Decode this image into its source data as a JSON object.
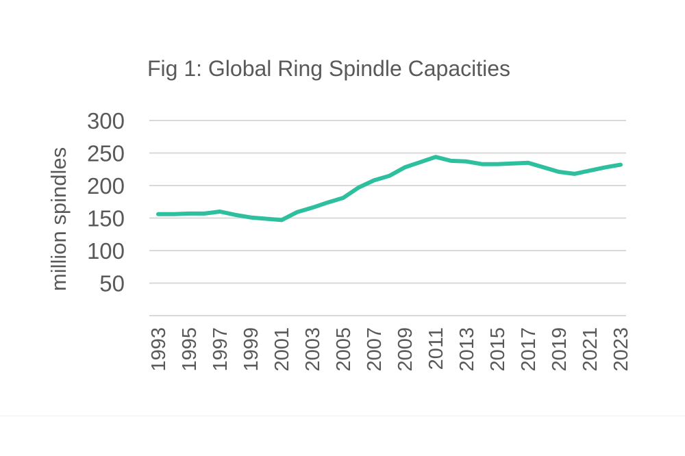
{
  "chart_data": {
    "type": "line",
    "title": "Fig 1: Global Ring Spindle Capacities",
    "xlabel": "",
    "ylabel": "million spindles",
    "ylim": [
      0,
      300
    ],
    "yticks": [
      50,
      100,
      150,
      200,
      250,
      300
    ],
    "ytick_labels": [
      "50",
      "100",
      "150",
      "200",
      "250",
      "300"
    ],
    "grid": true,
    "legend": "none",
    "x": [
      1993,
      1994,
      1995,
      1996,
      1997,
      1998,
      1999,
      2000,
      2001,
      2002,
      2003,
      2004,
      2005,
      2006,
      2007,
      2008,
      2009,
      2010,
      2011,
      2012,
      2013,
      2014,
      2015,
      2016,
      2017,
      2018,
      2019,
      2020,
      2021,
      2022,
      2023
    ],
    "xtick_labels": [
      "1993",
      "1995",
      "1997",
      "1999",
      "2001",
      "2003",
      "2005",
      "2007",
      "2009",
      "2011",
      "2013",
      "2015",
      "2017",
      "2019",
      "2021",
      "2023"
    ],
    "series": [
      {
        "name": "Global ring spindle capacity",
        "color": "#2ebf9e",
        "values": [
          156,
          156,
          157,
          157,
          160,
          155,
          151,
          149,
          147,
          159,
          166,
          174,
          181,
          197,
          208,
          215,
          228,
          236,
          244,
          238,
          237,
          233,
          233,
          234,
          235,
          228,
          221,
          218,
          223,
          228,
          232
        ]
      }
    ]
  }
}
